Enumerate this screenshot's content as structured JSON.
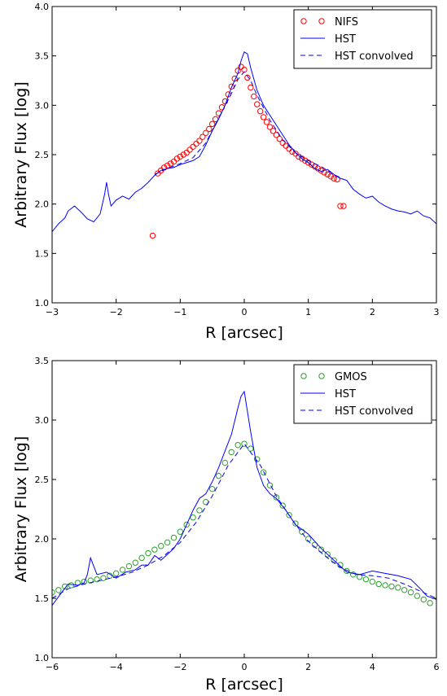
{
  "chart_data": [
    {
      "type": "scatter",
      "xlabel": "R [arcsec]",
      "ylabel": "Arbitrary Flux [log]",
      "xlim": [
        -3,
        3
      ],
      "ylim": [
        1.0,
        4.0
      ],
      "xticks": [
        -3,
        -2,
        -1,
        0,
        1,
        2,
        3
      ],
      "xtick_labels": [
        "−3",
        "−2",
        "−1",
        "0",
        "1",
        "2",
        "3"
      ],
      "yticks": [
        1.0,
        1.5,
        2.0,
        2.5,
        3.0,
        3.5,
        4.0
      ],
      "ytick_labels": [
        "1.0",
        "1.5",
        "2.0",
        "2.5",
        "3.0",
        "3.5",
        "4.0"
      ],
      "legend_position": "top-right",
      "series": [
        {
          "name": "NIFS",
          "style": "circles",
          "color": "#ff0000",
          "x": [
            -1.43,
            -1.35,
            -1.3,
            -1.25,
            -1.2,
            -1.15,
            -1.1,
            -1.05,
            -1.0,
            -0.95,
            -0.9,
            -0.85,
            -0.8,
            -0.75,
            -0.7,
            -0.65,
            -0.6,
            -0.55,
            -0.5,
            -0.45,
            -0.4,
            -0.35,
            -0.3,
            -0.25,
            -0.2,
            -0.15,
            -0.1,
            -0.05,
            0.0,
            0.05,
            0.1,
            0.15,
            0.2,
            0.25,
            0.3,
            0.35,
            0.4,
            0.45,
            0.5,
            0.55,
            0.6,
            0.65,
            0.7,
            0.75,
            0.8,
            0.85,
            0.9,
            0.95,
            1.0,
            1.05,
            1.1,
            1.15,
            1.2,
            1.25,
            1.3,
            1.35,
            1.4,
            1.45,
            1.5,
            1.55
          ],
          "y": [
            1.68,
            2.31,
            2.34,
            2.37,
            2.39,
            2.41,
            2.43,
            2.46,
            2.48,
            2.5,
            2.52,
            2.55,
            2.58,
            2.61,
            2.64,
            2.68,
            2.72,
            2.76,
            2.81,
            2.86,
            2.92,
            2.98,
            3.04,
            3.11,
            3.19,
            3.27,
            3.35,
            3.39,
            3.36,
            3.28,
            3.18,
            3.09,
            3.01,
            2.94,
            2.88,
            2.83,
            2.78,
            2.74,
            2.7,
            2.66,
            2.62,
            2.59,
            2.56,
            2.53,
            2.51,
            2.48,
            2.46,
            2.44,
            2.42,
            2.4,
            2.38,
            2.36,
            2.34,
            2.32,
            2.3,
            2.28,
            2.26,
            2.25,
            1.98,
            1.98
          ]
        },
        {
          "name": "HST",
          "style": "line",
          "color": "#0000ff",
          "x": [
            -3.0,
            -2.9,
            -2.8,
            -2.75,
            -2.65,
            -2.55,
            -2.45,
            -2.35,
            -2.25,
            -2.18,
            -2.15,
            -2.12,
            -2.08,
            -2.0,
            -1.9,
            -1.8,
            -1.7,
            -1.6,
            -1.5,
            -1.4,
            -1.3,
            -1.2,
            -1.1,
            -1.0,
            -0.9,
            -0.8,
            -0.7,
            -0.6,
            -0.5,
            -0.4,
            -0.3,
            -0.2,
            -0.1,
            -0.05,
            0.0,
            0.05,
            0.1,
            0.2,
            0.3,
            0.4,
            0.5,
            0.6,
            0.7,
            0.8,
            0.9,
            1.0,
            1.1,
            1.2,
            1.3,
            1.4,
            1.5,
            1.6,
            1.7,
            1.8,
            1.9,
            2.0,
            2.1,
            2.2,
            2.3,
            2.4,
            2.5,
            2.6,
            2.7,
            2.8,
            2.9,
            3.0
          ],
          "y": [
            1.72,
            1.8,
            1.86,
            1.93,
            1.98,
            1.92,
            1.85,
            1.82,
            1.9,
            2.1,
            2.22,
            2.1,
            1.98,
            2.04,
            2.08,
            2.05,
            2.12,
            2.16,
            2.22,
            2.29,
            2.34,
            2.36,
            2.37,
            2.4,
            2.42,
            2.44,
            2.48,
            2.6,
            2.74,
            2.86,
            3.0,
            3.18,
            3.32,
            3.45,
            3.54,
            3.52,
            3.38,
            3.15,
            3.0,
            2.9,
            2.8,
            2.7,
            2.6,
            2.52,
            2.46,
            2.42,
            2.36,
            2.33,
            2.35,
            2.3,
            2.26,
            2.24,
            2.15,
            2.1,
            2.06,
            2.08,
            2.02,
            1.98,
            1.95,
            1.93,
            1.92,
            1.9,
            1.93,
            1.88,
            1.86,
            1.8
          ]
        },
        {
          "name": "HST convolved",
          "style": "dashed",
          "color": "#0000ff",
          "x": [
            -1.4,
            -1.2,
            -1.0,
            -0.8,
            -0.6,
            -0.4,
            -0.2,
            -0.1,
            0.0,
            0.1,
            0.2,
            0.4,
            0.6,
            0.8,
            1.0,
            1.2,
            1.4,
            1.55
          ],
          "y": [
            2.3,
            2.36,
            2.41,
            2.47,
            2.62,
            2.87,
            3.12,
            3.26,
            3.34,
            3.25,
            3.1,
            2.85,
            2.65,
            2.52,
            2.44,
            2.38,
            2.3,
            2.25
          ]
        }
      ]
    },
    {
      "type": "scatter",
      "xlabel": "R [arcsec]",
      "ylabel": "Arbitrary Flux [log]",
      "xlim": [
        -6,
        6
      ],
      "ylim": [
        1.0,
        3.5
      ],
      "xticks": [
        -6,
        -4,
        -2,
        0,
        2,
        4,
        6
      ],
      "xtick_labels": [
        "−6",
        "−4",
        "−2",
        "0",
        "2",
        "4",
        "6"
      ],
      "yticks": [
        1.0,
        1.5,
        2.0,
        2.5,
        3.0,
        3.5
      ],
      "ytick_labels": [
        "1.0",
        "1.5",
        "2.0",
        "2.5",
        "3.0",
        "3.5"
      ],
      "legend_position": "top-right",
      "series": [
        {
          "name": "GMOS",
          "style": "circles",
          "color": "#2ca02c",
          "x": [
            -6.0,
            -5.8,
            -5.6,
            -5.4,
            -5.2,
            -5.0,
            -4.8,
            -4.6,
            -4.4,
            -4.2,
            -4.0,
            -3.8,
            -3.6,
            -3.4,
            -3.2,
            -3.0,
            -2.8,
            -2.6,
            -2.4,
            -2.2,
            -2.0,
            -1.8,
            -1.6,
            -1.4,
            -1.2,
            -1.0,
            -0.8,
            -0.6,
            -0.4,
            -0.2,
            0.0,
            0.2,
            0.4,
            0.6,
            0.8,
            1.0,
            1.2,
            1.4,
            1.6,
            1.8,
            2.0,
            2.2,
            2.4,
            2.6,
            2.8,
            3.0,
            3.2,
            3.4,
            3.6,
            3.8,
            4.0,
            4.2,
            4.4,
            4.6,
            4.8,
            5.0,
            5.2,
            5.4,
            5.6,
            5.8
          ],
          "y": [
            1.55,
            1.57,
            1.6,
            1.61,
            1.63,
            1.64,
            1.65,
            1.66,
            1.67,
            1.69,
            1.71,
            1.74,
            1.77,
            1.8,
            1.84,
            1.88,
            1.91,
            1.94,
            1.97,
            2.01,
            2.06,
            2.12,
            2.18,
            2.24,
            2.31,
            2.42,
            2.53,
            2.64,
            2.73,
            2.79,
            2.8,
            2.76,
            2.67,
            2.56,
            2.45,
            2.35,
            2.28,
            2.2,
            2.13,
            2.06,
            2.0,
            1.95,
            1.91,
            1.87,
            1.82,
            1.78,
            1.73,
            1.7,
            1.68,
            1.66,
            1.64,
            1.62,
            1.61,
            1.6,
            1.59,
            1.57,
            1.55,
            1.52,
            1.49,
            1.46
          ]
        },
        {
          "name": "HST",
          "style": "line",
          "color": "#0000ff",
          "x": [
            -6.0,
            -5.7,
            -5.5,
            -5.2,
            -5.0,
            -4.9,
            -4.8,
            -4.6,
            -4.3,
            -4.0,
            -3.7,
            -3.4,
            -3.2,
            -3.0,
            -2.8,
            -2.6,
            -2.4,
            -2.2,
            -2.0,
            -1.8,
            -1.6,
            -1.4,
            -1.2,
            -1.0,
            -0.8,
            -0.6,
            -0.4,
            -0.2,
            -0.1,
            0.0,
            0.2,
            0.4,
            0.6,
            0.8,
            1.0,
            1.3,
            1.6,
            2.0,
            2.4,
            2.8,
            3.2,
            3.6,
            4.0,
            4.4,
            4.8,
            5.2,
            5.5,
            5.7,
            6.0
          ],
          "y": [
            1.44,
            1.55,
            1.62,
            1.61,
            1.63,
            1.7,
            1.84,
            1.7,
            1.72,
            1.67,
            1.72,
            1.74,
            1.78,
            1.78,
            1.86,
            1.82,
            1.87,
            1.92,
            2.0,
            2.12,
            2.24,
            2.34,
            2.38,
            2.48,
            2.6,
            2.74,
            2.88,
            3.1,
            3.2,
            3.24,
            2.9,
            2.6,
            2.45,
            2.38,
            2.34,
            2.24,
            2.12,
            2.04,
            1.92,
            1.82,
            1.72,
            1.7,
            1.73,
            1.71,
            1.69,
            1.66,
            1.58,
            1.52,
            1.49
          ]
        },
        {
          "name": "HST convolved",
          "style": "dashed",
          "color": "#0000ff",
          "x": [
            -6.0,
            -5.5,
            -5.0,
            -4.5,
            -4.0,
            -3.5,
            -3.0,
            -2.5,
            -2.0,
            -1.5,
            -1.0,
            -0.5,
            0.0,
            0.5,
            1.0,
            1.5,
            2.0,
            2.5,
            3.0,
            3.5,
            4.0,
            4.5,
            5.0,
            5.5,
            6.0
          ],
          "y": [
            1.5,
            1.58,
            1.62,
            1.65,
            1.68,
            1.72,
            1.78,
            1.86,
            1.97,
            2.14,
            2.36,
            2.62,
            2.8,
            2.62,
            2.36,
            2.16,
            1.98,
            1.86,
            1.76,
            1.7,
            1.69,
            1.67,
            1.62,
            1.56,
            1.5
          ]
        }
      ]
    }
  ]
}
